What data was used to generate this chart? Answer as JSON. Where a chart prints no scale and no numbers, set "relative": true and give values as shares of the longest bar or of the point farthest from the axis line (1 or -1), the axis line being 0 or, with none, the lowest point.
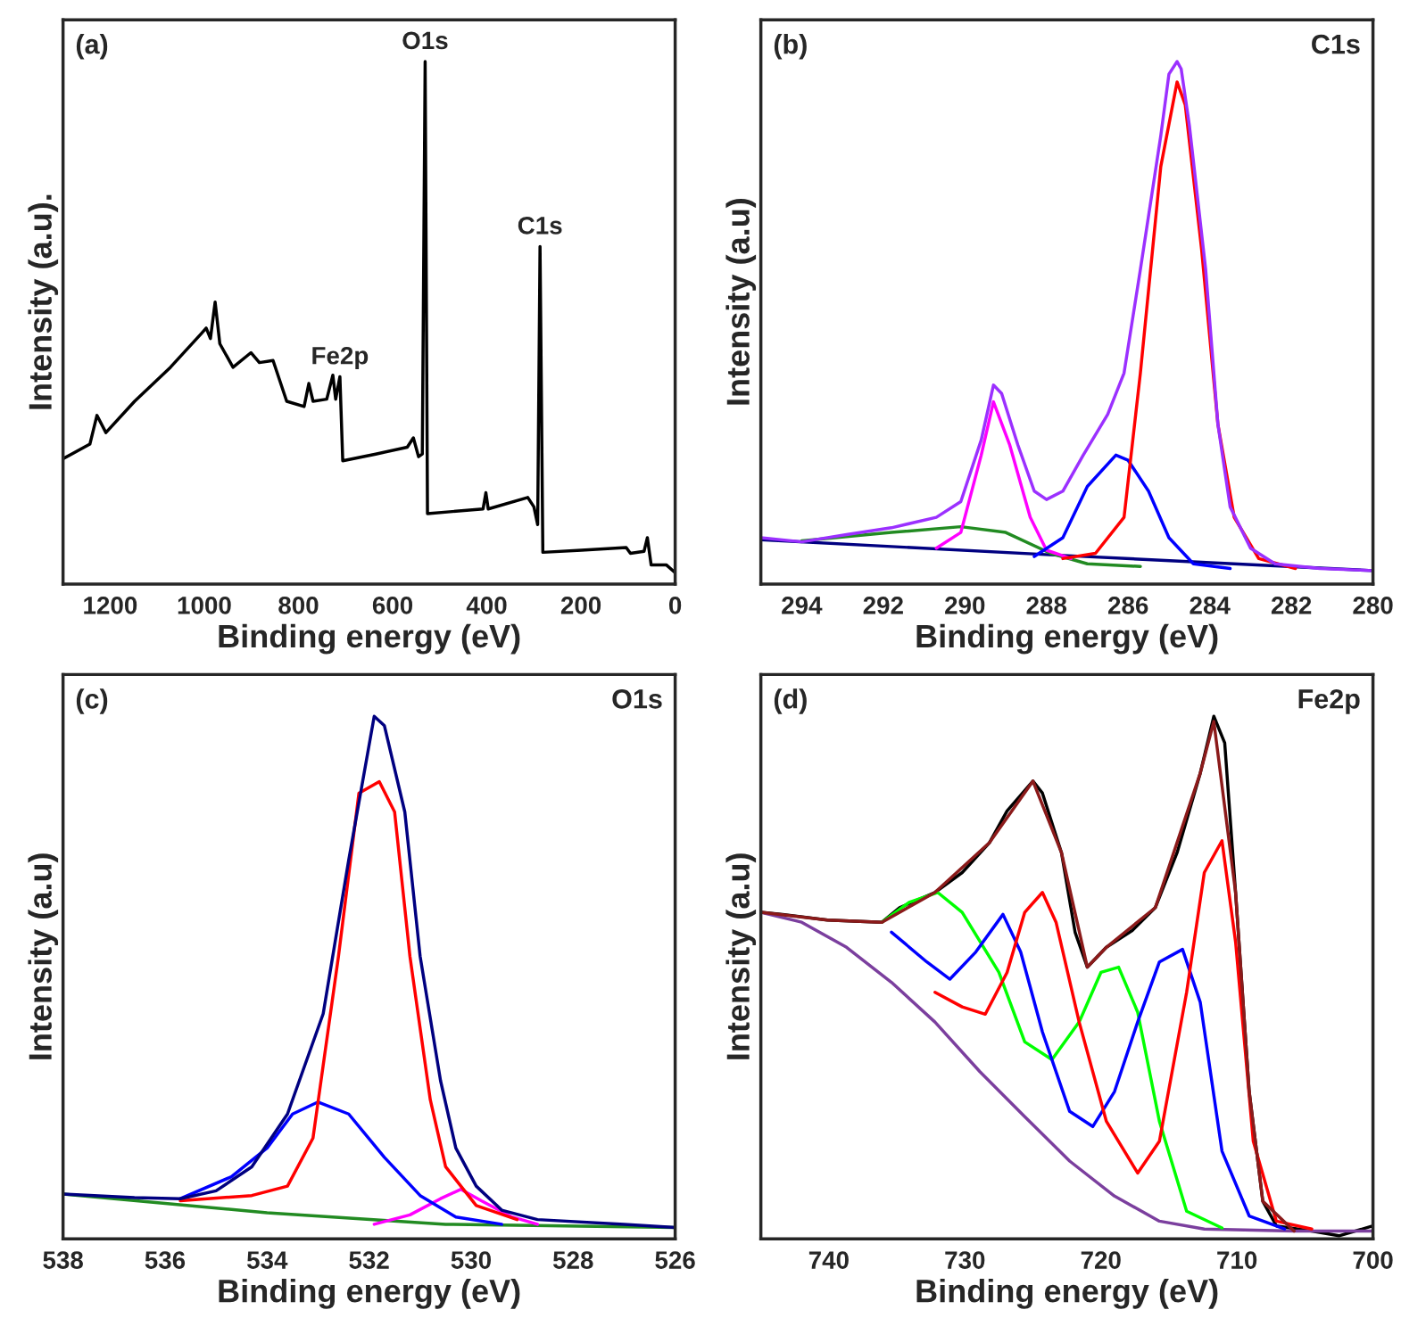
{
  "chart_data": [
    {
      "type": "line",
      "relative": true,
      "xlabel": "Binding energy (eV)",
      "ylabel": "Intensity (a.u).",
      "xlim": [
        1300,
        0
      ],
      "xticks": [
        1200,
        1000,
        800,
        600,
        400,
        200,
        0
      ],
      "grid": false,
      "legend": false,
      "marker": "none",
      "line_style": "solid",
      "annotations": [
        "(a)",
        {
          "text": "O1s",
          "x": 531,
          "y": 1.0
        },
        {
          "text": "C1s",
          "x": 287,
          "y": 0.646
        },
        {
          "text": "Fe2p",
          "x": 712,
          "y": 0.397
        }
      ],
      "series": [
        {
          "color": "#000000",
          "x": [
            1300,
            1243,
            1228,
            1209,
            1148,
            1072,
            1006,
            996,
            987,
            977,
            967,
            939,
            901,
            883,
            854,
            825,
            788,
            778,
            769,
            740,
            727,
            721,
            712,
            706,
            636,
            569,
            556,
            545,
            537,
            531,
            526,
            408,
            402,
            397,
            313,
            300,
            292,
            287,
            281,
            199,
            104,
            95,
            66,
            59,
            51,
            19,
            0
          ],
          "values": [
            0.24,
            0.268,
            0.323,
            0.29,
            0.35,
            0.415,
            0.48,
            0.49,
            0.47,
            0.54,
            0.46,
            0.415,
            0.443,
            0.424,
            0.428,
            0.35,
            0.34,
            0.384,
            0.35,
            0.354,
            0.4,
            0.354,
            0.397,
            0.236,
            0.249,
            0.262,
            0.28,
            0.244,
            0.249,
            1.0,
            0.135,
            0.144,
            0.175,
            0.144,
            0.166,
            0.148,
            0.114,
            0.646,
            0.061,
            0.065,
            0.07,
            0.059,
            0.063,
            0.089,
            0.037,
            0.037,
            0.022
          ]
        }
      ]
    },
    {
      "type": "line",
      "relative": true,
      "xlabel": "Binding energy (eV)",
      "ylabel": "Intensity (a.u)",
      "xlim": [
        295,
        280
      ],
      "xticks": [
        294,
        292,
        290,
        288,
        286,
        284,
        282,
        280
      ],
      "grid": false,
      "legend": false,
      "marker": "none",
      "line_style": "solid",
      "annotations": [
        "(b)",
        "C1s"
      ],
      "series": [
        {
          "color": "#000080",
          "x": [
            295,
            287.6,
            280
          ],
          "values": [
            0.085,
            0.055,
            0.026
          ]
        },
        {
          "color": "#228b22",
          "x": [
            294.0,
            291.8,
            290.1,
            289.0,
            287.9,
            287.0,
            285.7
          ],
          "values": [
            0.083,
            0.099,
            0.11,
            0.099,
            0.059,
            0.039,
            0.034
          ]
        },
        {
          "color": "#ff00ff",
          "x": [
            290.7,
            290.1,
            289.6,
            289.3,
            288.9,
            288.4,
            288.0,
            287.4
          ],
          "values": [
            0.069,
            0.099,
            0.247,
            0.349,
            0.266,
            0.128,
            0.065,
            0.049
          ]
        },
        {
          "color": "#0000ff",
          "x": [
            288.3,
            287.6,
            287.0,
            286.3,
            286.0,
            285.5,
            285.0,
            284.4,
            283.5
          ],
          "values": [
            0.053,
            0.089,
            0.187,
            0.247,
            0.237,
            0.178,
            0.089,
            0.039,
            0.03
          ]
        },
        {
          "color": "#ff0000",
          "x": [
            287.6,
            286.8,
            286.1,
            285.7,
            285.2,
            284.8,
            284.6,
            284.2,
            283.8,
            283.4,
            282.8,
            281.9
          ],
          "values": [
            0.049,
            0.059,
            0.128,
            0.404,
            0.799,
            0.961,
            0.917,
            0.641,
            0.306,
            0.128,
            0.049,
            0.03
          ]
        },
        {
          "color": "#9b30ff",
          "x": [
            295,
            294.0,
            292.9,
            291.8,
            290.7,
            290.1,
            289.6,
            289.3,
            289.1,
            288.7,
            288.3,
            288.0,
            287.6,
            287.1,
            286.5,
            286.1,
            285.7,
            285.2,
            285.0,
            284.8,
            284.7,
            284.5,
            284.1,
            283.8,
            283.5,
            283.0,
            282.4,
            281.3,
            280
          ],
          "values": [
            0.089,
            0.081,
            0.095,
            0.108,
            0.128,
            0.158,
            0.276,
            0.381,
            0.365,
            0.266,
            0.178,
            0.162,
            0.178,
            0.247,
            0.325,
            0.404,
            0.602,
            0.858,
            0.976,
            1.0,
            0.986,
            0.878,
            0.602,
            0.306,
            0.148,
            0.069,
            0.039,
            0.03,
            0.026
          ]
        }
      ]
    },
    {
      "type": "line",
      "relative": true,
      "xlabel": "Binding energy (eV)",
      "ylabel": "Intensity (a.u)",
      "xlim": [
        538,
        526
      ],
      "xticks": [
        538,
        536,
        534,
        532,
        530,
        528,
        526
      ],
      "grid": false,
      "legend": false,
      "marker": "none",
      "line_style": "solid",
      "annotations": [
        "(c)",
        "O1s"
      ],
      "series": [
        {
          "color": "#228b22",
          "x": [
            538,
            534.0,
            530.5,
            526
          ],
          "values": [
            0.086,
            0.05,
            0.028,
            0.022
          ]
        },
        {
          "color": "#ff00ff",
          "x": [
            531.9,
            531.2,
            530.6,
            530.2,
            529.8,
            529.2,
            528.7
          ],
          "values": [
            0.028,
            0.046,
            0.077,
            0.095,
            0.073,
            0.042,
            0.028
          ]
        },
        {
          "color": "#0000ff",
          "x": [
            535.7,
            534.7,
            534.0,
            533.5,
            533.0,
            532.4,
            531.7,
            531.0,
            530.3,
            529.4
          ],
          "values": [
            0.077,
            0.119,
            0.174,
            0.239,
            0.262,
            0.239,
            0.156,
            0.083,
            0.042,
            0.028
          ]
        },
        {
          "color": "#ff0000",
          "x": [
            535.7,
            534.3,
            533.6,
            533.1,
            532.6,
            532.2,
            531.8,
            531.5,
            531.2,
            530.8,
            530.5,
            529.9,
            529.1
          ],
          "values": [
            0.073,
            0.083,
            0.101,
            0.193,
            0.541,
            0.853,
            0.875,
            0.817,
            0.541,
            0.266,
            0.138,
            0.064,
            0.037
          ]
        },
        {
          "color": "#000080",
          "x": [
            538,
            536.6,
            535.7,
            535.0,
            534.3,
            533.6,
            532.9,
            532.4,
            532.0,
            531.9,
            531.7,
            531.3,
            531.0,
            530.6,
            530.3,
            529.9,
            529.4,
            528.7,
            527.0,
            526
          ],
          "values": [
            0.086,
            0.079,
            0.077,
            0.092,
            0.138,
            0.239,
            0.431,
            0.725,
            0.945,
            1.0,
            0.982,
            0.817,
            0.541,
            0.303,
            0.174,
            0.101,
            0.055,
            0.037,
            0.028,
            0.022
          ]
        }
      ]
    },
    {
      "type": "line",
      "relative": true,
      "xlabel": "Binding energy (eV)",
      "ylabel": "Intensity (a.u)",
      "xlim": [
        745,
        700
      ],
      "xticks": [
        740,
        730,
        720,
        710,
        700
      ],
      "grid": false,
      "legend": false,
      "marker": "none",
      "line_style": "solid",
      "annotations": [
        "(d)",
        "Fe2p"
      ],
      "series": [
        {
          "color": "#000000",
          "x": [
            745,
            743.4,
            740.1,
            736.1,
            734.8,
            732.2,
            730.2,
            728.2,
            726.9,
            725.0,
            724.3,
            722.9,
            721.9,
            721.0,
            719.6,
            717.7,
            716.0,
            714.4,
            712.7,
            711.7,
            710.9,
            710.1,
            709.1,
            708.1,
            707.1,
            704.5,
            702.5,
            700
          ],
          "values": [
            0.625,
            0.621,
            0.61,
            0.606,
            0.634,
            0.663,
            0.701,
            0.758,
            0.819,
            0.876,
            0.853,
            0.739,
            0.587,
            0.52,
            0.558,
            0.59,
            0.634,
            0.739,
            0.891,
            1.0,
            0.949,
            0.663,
            0.282,
            0.072,
            0.025,
            0.015,
            0.006,
            0.025
          ]
        },
        {
          "color": "#7b3f9e",
          "x": [
            745,
            742.0,
            738.7,
            735.4,
            732.2,
            728.9,
            725.6,
            722.3,
            719.0,
            715.7,
            712.4,
            705.8,
            700
          ],
          "values": [
            0.625,
            0.606,
            0.558,
            0.491,
            0.415,
            0.32,
            0.234,
            0.149,
            0.082,
            0.034,
            0.019,
            0.015,
            0.015
          ]
        },
        {
          "color": "#00ff00",
          "x": [
            736.1,
            734.1,
            732.0,
            730.2,
            727.5,
            725.6,
            723.6,
            721.6,
            720.0,
            718.7,
            717.3,
            715.7,
            713.7,
            711.1
          ],
          "values": [
            0.606,
            0.644,
            0.663,
            0.625,
            0.51,
            0.377,
            0.343,
            0.415,
            0.51,
            0.52,
            0.434,
            0.225,
            0.053,
            0.021
          ]
        },
        {
          "color": "#0000ff",
          "x": [
            735.4,
            732.8,
            731.1,
            729.2,
            727.2,
            725.9,
            724.3,
            722.3,
            720.6,
            719.0,
            717.3,
            715.7,
            714.0,
            712.7,
            711.1,
            709.1,
            706.5
          ],
          "values": [
            0.587,
            0.53,
            0.497,
            0.549,
            0.621,
            0.549,
            0.396,
            0.244,
            0.215,
            0.282,
            0.415,
            0.53,
            0.554,
            0.453,
            0.168,
            0.044,
            0.019
          ]
        },
        {
          "color": "#ff0000",
          "x": [
            732.2,
            730.2,
            728.5,
            726.9,
            725.6,
            724.3,
            723.3,
            721.6,
            719.6,
            717.3,
            715.7,
            713.7,
            712.4,
            711.1,
            710.1,
            708.8,
            707.1,
            704.5
          ],
          "values": [
            0.472,
            0.444,
            0.43,
            0.51,
            0.625,
            0.663,
            0.606,
            0.415,
            0.225,
            0.126,
            0.187,
            0.472,
            0.701,
            0.762,
            0.568,
            0.187,
            0.034,
            0.019
          ]
        },
        {
          "color": "#8b1a1a",
          "x": [
            745,
            740.1,
            736.1,
            732.2,
            728.2,
            725.0,
            722.9,
            721.0,
            719.6,
            716.0,
            712.7,
            711.7,
            710.1,
            709.1,
            708.1,
            705.8
          ],
          "values": [
            0.625,
            0.61,
            0.606,
            0.663,
            0.758,
            0.876,
            0.739,
            0.52,
            0.558,
            0.634,
            0.891,
            0.99,
            0.663,
            0.282,
            0.072,
            0.015
          ]
        }
      ]
    }
  ]
}
